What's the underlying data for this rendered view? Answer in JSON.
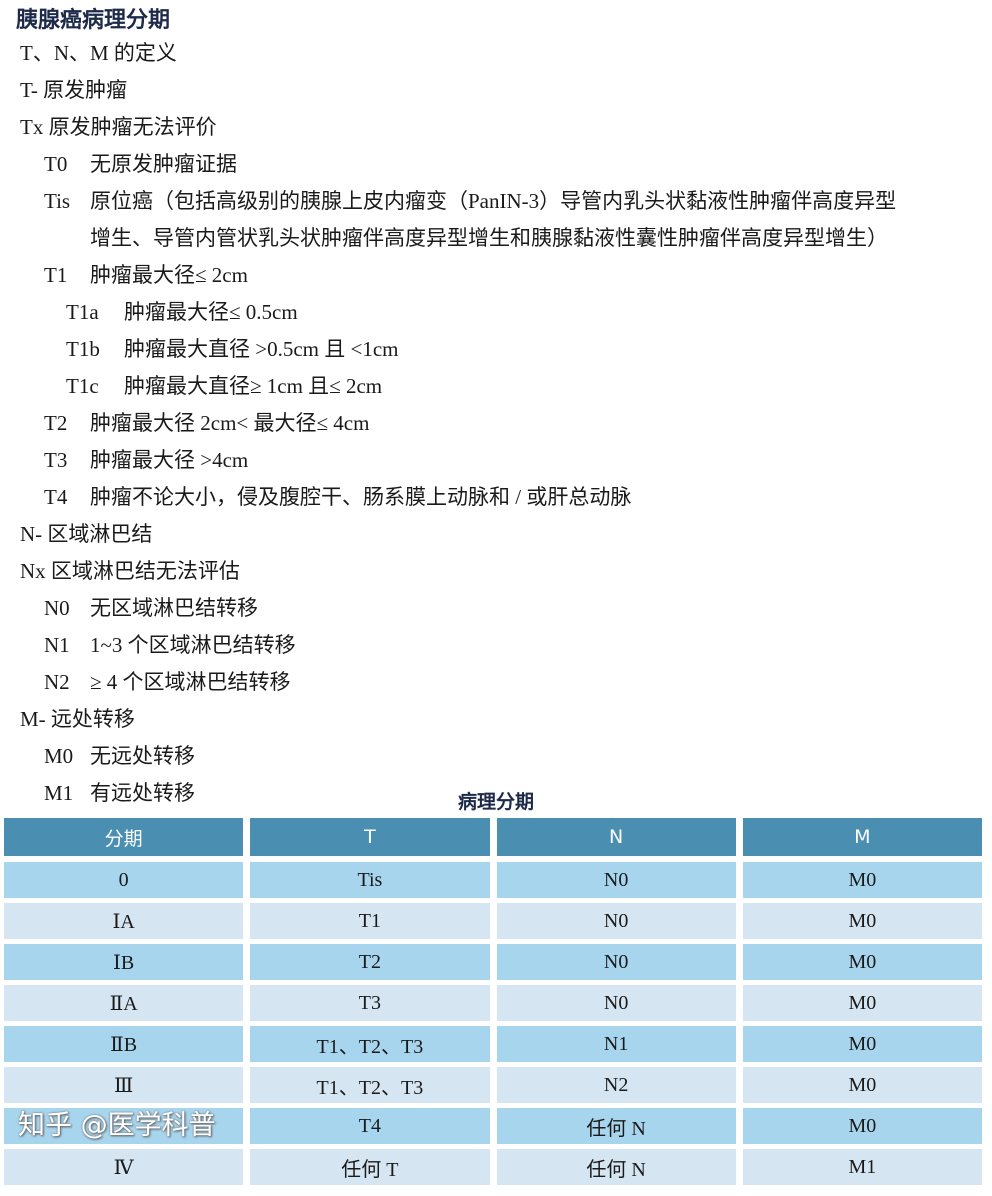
{
  "title": "胰腺癌病理分期",
  "lines": [
    {
      "code": "T、N、M 的定义",
      "text": "",
      "level": 0
    },
    {
      "code": "T- 原发肿瘤",
      "text": "",
      "level": 0
    },
    {
      "code": "Tx 原发肿瘤无法评价",
      "text": "",
      "level": 0
    },
    {
      "code": "T0",
      "text": "无原发肿瘤证据",
      "level": 1
    },
    {
      "code": "Tis",
      "text": "原位癌（包括高级别的胰腺上皮内瘤变（PanIN-3）导管内乳头状黏液性肿瘤伴高度异型",
      "level": 1
    },
    {
      "code": "",
      "text": "增生、导管内管状乳头状肿瘤伴高度异型增生和胰腺黏液性囊性肿瘤伴高度异型增生）",
      "level": 3
    },
    {
      "code": "T1",
      "text": "肿瘤最大径≤ 2cm",
      "level": 1
    },
    {
      "code": "T1a",
      "text": "肿瘤最大径≤ 0.5cm",
      "level": 2
    },
    {
      "code": "T1b",
      "text": "肿瘤最大直径 >0.5cm 且 <1cm",
      "level": 2
    },
    {
      "code": "T1c",
      "text": "肿瘤最大直径≥ 1cm 且≤ 2cm",
      "level": 2
    },
    {
      "code": "T2",
      "text": "肿瘤最大径 2cm< 最大径≤ 4cm",
      "level": 1
    },
    {
      "code": "T3",
      "text": "肿瘤最大径 >4cm",
      "level": 1
    },
    {
      "code": "T4",
      "text": "肿瘤不论大小，侵及腹腔干、肠系膜上动脉和 / 或肝总动脉",
      "level": 1
    },
    {
      "code": "N- 区域淋巴结",
      "text": "",
      "level": 0
    },
    {
      "code": "Nx 区域淋巴结无法评估",
      "text": "",
      "level": 0
    },
    {
      "code": "N0",
      "text": "无区域淋巴结转移",
      "level": 1
    },
    {
      "code": "N1",
      "text": "1~3 个区域淋巴结转移",
      "level": 1
    },
    {
      "code": "N2",
      "text": "≥ 4 个区域淋巴结转移",
      "level": 1
    },
    {
      "code": "M- 远处转移",
      "text": "",
      "level": 0
    },
    {
      "code": "M0",
      "text": "无远处转移",
      "level": 1
    },
    {
      "code": "M1",
      "text": "有远处转移",
      "level": 1
    }
  ],
  "table": {
    "caption": "病理分期",
    "headers": [
      "分期",
      "T",
      "N",
      "M"
    ],
    "rows": [
      [
        "0",
        "Tis",
        "N0",
        "M0"
      ],
      [
        "ⅠA",
        "T1",
        "N0",
        "M0"
      ],
      [
        "ⅠB",
        "T2",
        "N0",
        "M0"
      ],
      [
        "ⅡA",
        "T3",
        "N0",
        "M0"
      ],
      [
        "ⅡB",
        "T1、T2、T3",
        "N1",
        "M0"
      ],
      [
        "Ⅲ",
        "T1、T2、T3",
        "N2",
        "M0"
      ],
      [
        "",
        "T4",
        "任何 N",
        "M0"
      ],
      [
        "Ⅳ",
        "任何 T",
        "任何 N",
        "M1"
      ]
    ]
  },
  "watermark": "知乎 @医学科普",
  "colors": {
    "header": "#4a8fb2",
    "row_dark": "#a8d5ee",
    "row_light": "#d5e6f2",
    "title": "#1e2a4a"
  }
}
